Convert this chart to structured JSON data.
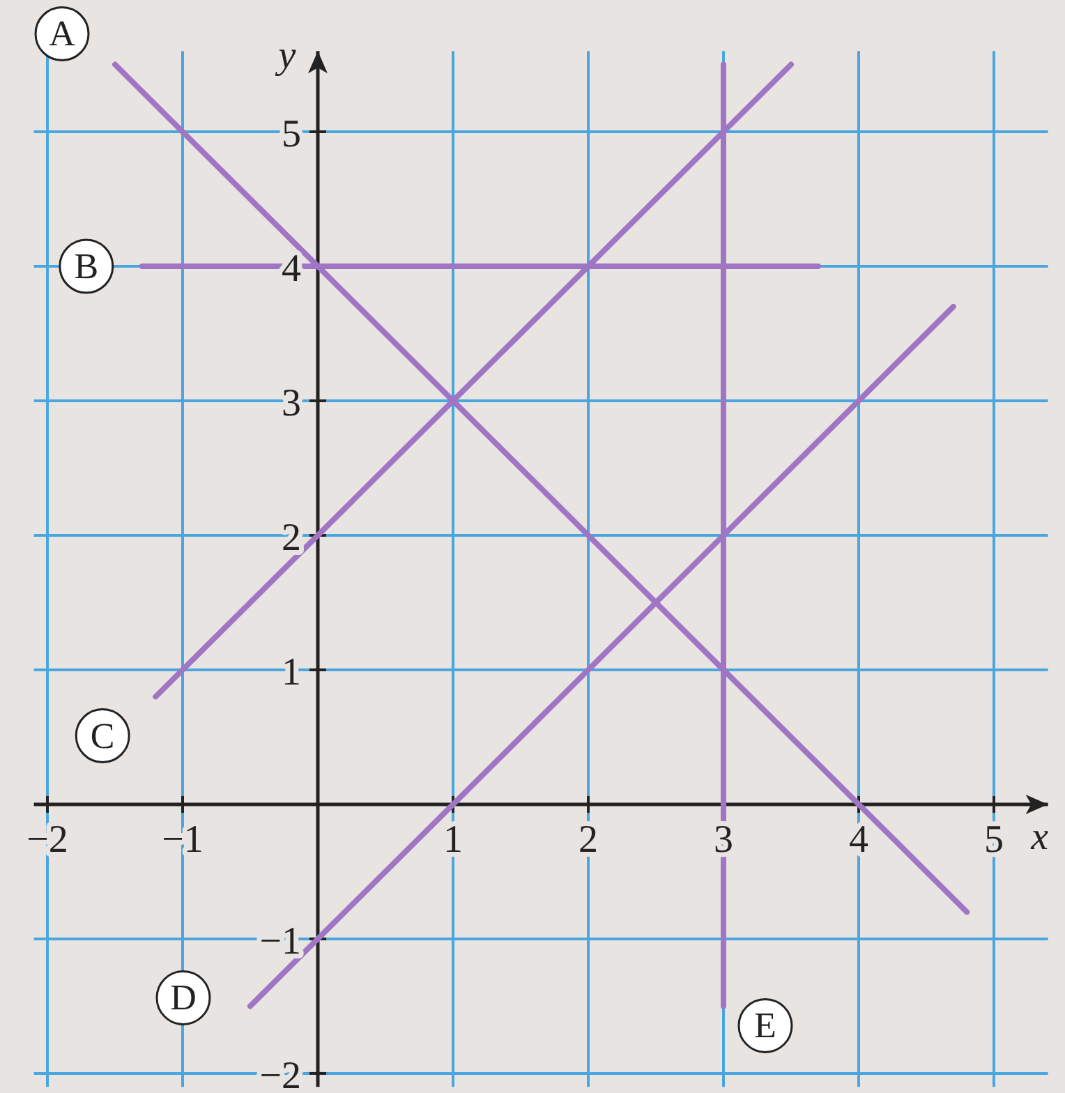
{
  "chart_data": {
    "type": "line",
    "xlabel": "x",
    "ylabel": "y",
    "xlim": [
      -2.1,
      5.4
    ],
    "ylim": [
      -2.1,
      5.6
    ],
    "xticks": [
      {
        "value": -2,
        "label": "−2"
      },
      {
        "value": -1,
        "label": "−1"
      },
      1,
      2,
      3,
      4,
      5
    ],
    "yticks": [
      {
        "value": -2,
        "label": "−2"
      },
      {
        "value": -1,
        "label": "−1"
      },
      1,
      2,
      3,
      4,
      5
    ],
    "grid": true,
    "marker": "none",
    "line_style": "solid",
    "series": [
      {
        "name": "A",
        "color": "#a075c4",
        "x": [
          -1.5,
          4.8
        ],
        "values": [
          5.5,
          -0.8
        ]
      },
      {
        "name": "B",
        "color": "#a075c4",
        "x": [
          -1.3,
          3.7
        ],
        "values": [
          4,
          4
        ]
      },
      {
        "name": "C",
        "color": "#a075c4",
        "x": [
          -1.2,
          3.5
        ],
        "values": [
          0.8,
          5.5
        ]
      },
      {
        "name": "D",
        "color": "#a075c4",
        "x": [
          -0.5,
          4.7
        ],
        "values": [
          -1.5,
          3.7
        ]
      },
      {
        "name": "E",
        "color": "#a075c4",
        "x": [
          3,
          3
        ],
        "values": [
          5.5,
          -1.5
        ]
      }
    ]
  }
}
